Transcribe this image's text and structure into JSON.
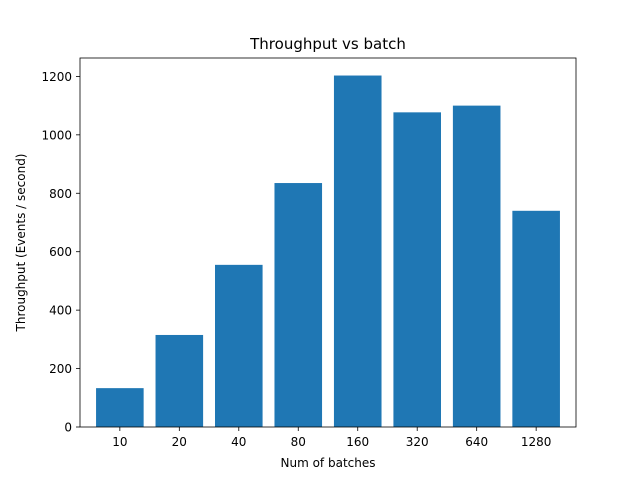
{
  "chart_data": {
    "type": "bar",
    "title": "Throughput vs batch",
    "xlabel": "Num of batches",
    "ylabel": "Throughput (Events / second)",
    "categories": [
      "10",
      "20",
      "40",
      "80",
      "160",
      "320",
      "640",
      "1280"
    ],
    "values": [
      133,
      315,
      555,
      835,
      1203,
      1077,
      1100,
      740
    ],
    "ylim": [
      0,
      1263
    ],
    "yticks": [
      0,
      200,
      400,
      600,
      800,
      1000,
      1200
    ],
    "grid": false,
    "legend": "none",
    "bar_color": "#1f77b4"
  }
}
